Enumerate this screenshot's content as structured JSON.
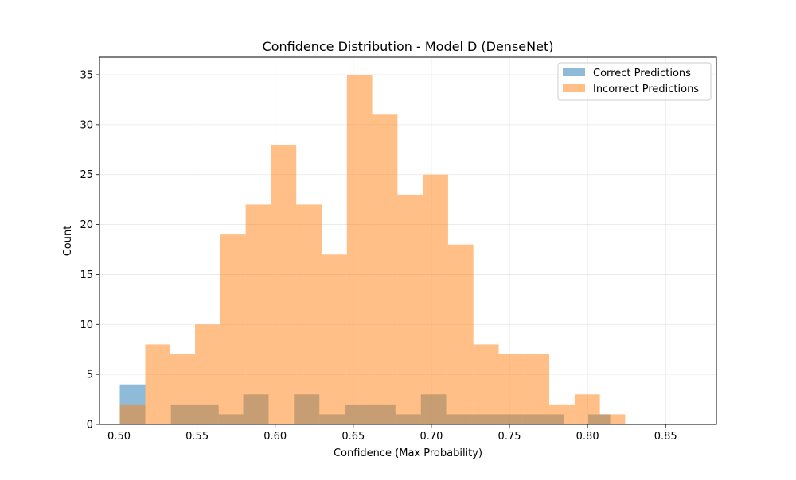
{
  "chart_data": {
    "type": "bar",
    "title": "Confidence Distribution - Model D (DenseNet)",
    "xlabel": "Confidence (Max Probability)",
    "ylabel": "Count",
    "xlim": [
      0.4875,
      0.8825
    ],
    "ylim": [
      0,
      36.75
    ],
    "xticks": [
      "0.50",
      "0.55",
      "0.60",
      "0.65",
      "0.70",
      "0.75",
      "0.80",
      "0.85"
    ],
    "yticks": [
      "0",
      "5",
      "10",
      "15",
      "20",
      "25",
      "30",
      "35"
    ],
    "grid": true,
    "legend_position": "top-right",
    "series": [
      {
        "name": "Correct Predictions",
        "color": "#1f77b4",
        "opacity": 0.5,
        "bins": [
          {
            "x0": 0.5005,
            "x1": 0.5168,
            "count": 4
          },
          {
            "x0": 0.5168,
            "x1": 0.5332,
            "count": 0
          },
          {
            "x0": 0.5332,
            "x1": 0.5495,
            "count": 2
          },
          {
            "x0": 0.5495,
            "x1": 0.5638,
            "count": 2
          },
          {
            "x0": 0.5638,
            "x1": 0.5795,
            "count": 1
          },
          {
            "x0": 0.5795,
            "x1": 0.5958,
            "count": 3
          },
          {
            "x0": 0.5958,
            "x1": 0.612,
            "count": 0
          },
          {
            "x0": 0.612,
            "x1": 0.6283,
            "count": 3
          },
          {
            "x0": 0.6283,
            "x1": 0.6445,
            "count": 1
          },
          {
            "x0": 0.6445,
            "x1": 0.6608,
            "count": 2
          },
          {
            "x0": 0.6608,
            "x1": 0.677,
            "count": 2
          },
          {
            "x0": 0.677,
            "x1": 0.6933,
            "count": 1
          },
          {
            "x0": 0.6933,
            "x1": 0.7095,
            "count": 3
          },
          {
            "x0": 0.7095,
            "x1": 0.7258,
            "count": 1
          },
          {
            "x0": 0.7258,
            "x1": 0.742,
            "count": 1
          },
          {
            "x0": 0.742,
            "x1": 0.7583,
            "count": 1
          },
          {
            "x0": 0.7583,
            "x1": 0.7745,
            "count": 1
          },
          {
            "x0": 0.7745,
            "x1": 0.785,
            "count": 1
          },
          {
            "x0": 0.785,
            "x1": 0.8005,
            "count": 0
          },
          {
            "x0": 0.8005,
            "x1": 0.8145,
            "count": 1
          }
        ]
      },
      {
        "name": "Incorrect Predictions",
        "color": "#ff7f0e",
        "opacity": 0.5,
        "bins": [
          {
            "x0": 0.5005,
            "x1": 0.5168,
            "count": 2
          },
          {
            "x0": 0.5168,
            "x1": 0.5325,
            "count": 8
          },
          {
            "x0": 0.5325,
            "x1": 0.5487,
            "count": 7
          },
          {
            "x0": 0.5487,
            "x1": 0.5649,
            "count": 10
          },
          {
            "x0": 0.5649,
            "x1": 0.5811,
            "count": 19
          },
          {
            "x0": 0.5811,
            "x1": 0.5973,
            "count": 22
          },
          {
            "x0": 0.5973,
            "x1": 0.6135,
            "count": 28
          },
          {
            "x0": 0.6135,
            "x1": 0.6297,
            "count": 22
          },
          {
            "x0": 0.6297,
            "x1": 0.6459,
            "count": 17
          },
          {
            "x0": 0.6459,
            "x1": 0.6621,
            "count": 35
          },
          {
            "x0": 0.6621,
            "x1": 0.6783,
            "count": 31
          },
          {
            "x0": 0.6783,
            "x1": 0.6945,
            "count": 23
          },
          {
            "x0": 0.6945,
            "x1": 0.7107,
            "count": 25
          },
          {
            "x0": 0.7107,
            "x1": 0.7269,
            "count": 18
          },
          {
            "x0": 0.7269,
            "x1": 0.7431,
            "count": 8
          },
          {
            "x0": 0.7431,
            "x1": 0.7593,
            "count": 7
          },
          {
            "x0": 0.7593,
            "x1": 0.7755,
            "count": 7
          },
          {
            "x0": 0.7755,
            "x1": 0.7917,
            "count": 2
          },
          {
            "x0": 0.7917,
            "x1": 0.8079,
            "count": 3
          },
          {
            "x0": 0.8079,
            "x1": 0.8241,
            "count": 1
          }
        ]
      }
    ]
  }
}
